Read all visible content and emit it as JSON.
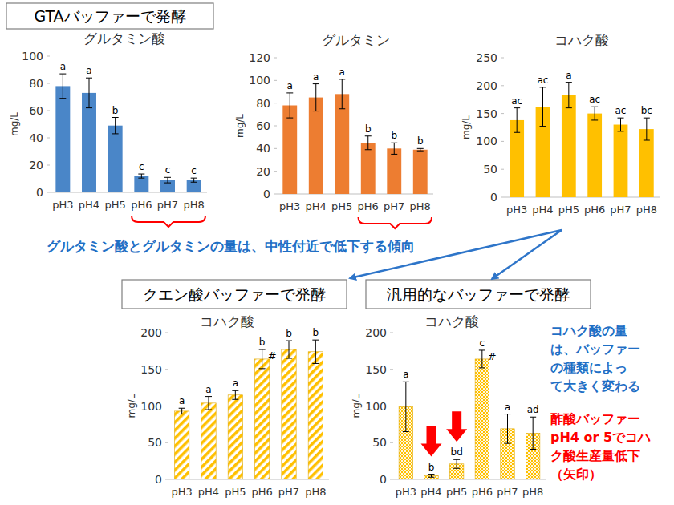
{
  "sections": [
    {
      "title": "GTAバッファーで発酵"
    },
    {
      "title": "クエン酸バッファーで発酵"
    },
    {
      "title": "汎用的なバッファーで発酵"
    }
  ],
  "annotations": [
    {
      "text_lines": [
        "グルタミン酸とグルタミンの量は、中性付近で低下する傾向"
      ],
      "color": "#1f6fc5"
    },
    {
      "text_lines": [
        "コハク酸の量",
        "は、バッファー",
        "の種類によっ",
        "て大きく変わる"
      ],
      "color": "#1f6fc5"
    },
    {
      "text_lines": [
        "酢酸バッファー",
        "pH4 or 5でコハ",
        "ク酸生産量低下",
        "（矢印）"
      ],
      "color": "#ff0000"
    }
  ],
  "chart_data": [
    {
      "type": "bar",
      "title": "グルタミン酸",
      "y_label": "mg/L",
      "categories": [
        "pH3",
        "pH4",
        "pH5",
        "pH6",
        "pH7",
        "pH8"
      ],
      "values": [
        78,
        73,
        49,
        12,
        9,
        9
      ],
      "errors": [
        9,
        11,
        6,
        1.5,
        2,
        1.5
      ],
      "letters": [
        "a",
        "a",
        "b",
        "c",
        "c",
        "c"
      ],
      "color": "#4a86c8",
      "ylim": [
        0,
        100
      ],
      "yticks": [
        0,
        20,
        40,
        60,
        80,
        100
      ]
    },
    {
      "type": "bar",
      "title": "グルタミン",
      "y_label": "mg/L",
      "categories": [
        "pH3",
        "pH4",
        "pH5",
        "pH6",
        "pH7",
        "pH8"
      ],
      "values": [
        78,
        85,
        88,
        45,
        40,
        39
      ],
      "errors": [
        11,
        12,
        13,
        6,
        5,
        1
      ],
      "letters": [
        "a",
        "a",
        "a",
        "b",
        "b",
        "b"
      ],
      "color": "#ed7d31",
      "ylim": [
        0,
        120
      ],
      "yticks": [
        0,
        20,
        40,
        60,
        80,
        100,
        120
      ]
    },
    {
      "type": "bar",
      "title": "コハク酸",
      "y_label": "mg/L",
      "categories": [
        "pH3",
        "pH4",
        "pH5",
        "pH6",
        "pH7",
        "pH8"
      ],
      "values": [
        138,
        162,
        183,
        150,
        130,
        122
      ],
      "errors": [
        22,
        35,
        23,
        12,
        12,
        20
      ],
      "letters": [
        "ac",
        "ac",
        "a",
        "ac",
        "ac",
        "bc"
      ],
      "color": "#ffc000",
      "ylim": [
        0,
        250
      ],
      "yticks": [
        0,
        50,
        100,
        150,
        200,
        250
      ]
    },
    {
      "type": "bar",
      "title": "コハク酸",
      "y_label": "mg/L",
      "categories": [
        "pH3",
        "pH4",
        "pH5",
        "pH6",
        "pH7",
        "pH8"
      ],
      "values": [
        93,
        104,
        115,
        164,
        177,
        174
      ],
      "errors": [
        4,
        9,
        6,
        13,
        12,
        16
      ],
      "letters": [
        "a",
        "a",
        "a",
        "b",
        "b",
        "b"
      ],
      "flags": [
        null,
        null,
        null,
        "#",
        null,
        null
      ],
      "color": "#ffc000",
      "ylim": [
        0,
        200
      ],
      "yticks": [
        0,
        50,
        100,
        150,
        200
      ]
    },
    {
      "type": "bar",
      "title": "コハク酸",
      "y_label": "mg/L",
      "categories": [
        "pH3",
        "pH4",
        "pH5",
        "pH6",
        "pH7",
        "pH8"
      ],
      "values": [
        99,
        5,
        21,
        164,
        69,
        63
      ],
      "errors": [
        34,
        2,
        6,
        12,
        20,
        22
      ],
      "letters": [
        "a",
        "b",
        "bd",
        "c",
        "a",
        "ad"
      ],
      "flags": [
        null,
        null,
        null,
        "#",
        null,
        null
      ],
      "arrow_categories": [
        "pH4",
        "pH5"
      ],
      "color": "#ffc000",
      "ylim": [
        0,
        200
      ],
      "yticks": [
        0,
        50,
        100,
        150,
        200
      ]
    }
  ]
}
